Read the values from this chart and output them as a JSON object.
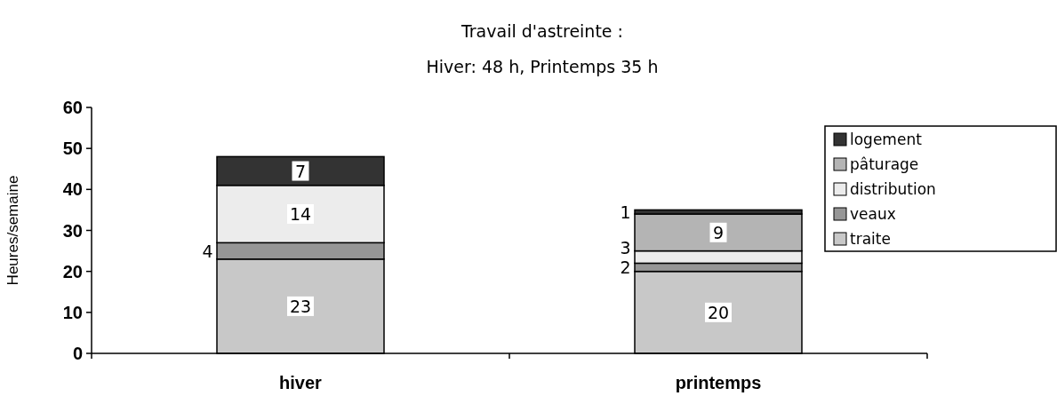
{
  "chart_data": {
    "type": "bar",
    "title": "Travail d'astreinte :",
    "subtitle": "Hiver: 48 h, Printemps 35 h",
    "ylabel": "Heures/semaine",
    "categories": [
      "hiver",
      "printemps"
    ],
    "stacked": true,
    "data_labels": true,
    "legend": "right",
    "ylim": [
      0,
      60
    ],
    "yticks": [
      0,
      10,
      20,
      30,
      40,
      50,
      60
    ],
    "series": [
      {
        "name": "traite",
        "color": "#c8c8c8",
        "values": [
          23,
          20
        ]
      },
      {
        "name": "veaux",
        "color": "#969696",
        "values": [
          4,
          2
        ]
      },
      {
        "name": "distribution",
        "color": "#ececec",
        "values": [
          14,
          3
        ]
      },
      {
        "name": "pâturage",
        "color": "#b4b4b4",
        "values": [
          null,
          9
        ]
      },
      {
        "name": "logement",
        "color": "#333333",
        "values": [
          7,
          1
        ]
      }
    ]
  }
}
